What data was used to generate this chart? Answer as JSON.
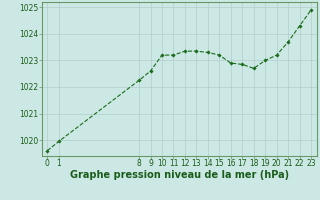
{
  "x": [
    0,
    1,
    8,
    9,
    10,
    11,
    12,
    13,
    14,
    15,
    16,
    17,
    18,
    19,
    20,
    21,
    22,
    23
  ],
  "y": [
    1019.6,
    1019.95,
    1022.25,
    1022.6,
    1023.2,
    1023.2,
    1023.35,
    1023.35,
    1023.3,
    1023.2,
    1022.9,
    1022.85,
    1022.7,
    1023.0,
    1023.2,
    1023.7,
    1024.3,
    1024.9
  ],
  "xlim": [
    -0.5,
    23.5
  ],
  "ylim": [
    1019.4,
    1025.2
  ],
  "yticks": [
    1020,
    1021,
    1022,
    1023,
    1024,
    1025
  ],
  "xticks": [
    0,
    1,
    8,
    9,
    10,
    11,
    12,
    13,
    14,
    15,
    16,
    17,
    18,
    19,
    20,
    21,
    22,
    23
  ],
  "line_color": "#1a6b1a",
  "marker_color": "#1a6b1a",
  "bg_color": "#cce8e4",
  "grid_color": "#b0cccc",
  "border_color": "#669966",
  "xlabel": "Graphe pression niveau de la mer (hPa)",
  "xlabel_color": "#1a5c1a",
  "xlabel_fontsize": 7.0,
  "tick_fontsize": 5.5,
  "tick_color": "#1a5c1a"
}
